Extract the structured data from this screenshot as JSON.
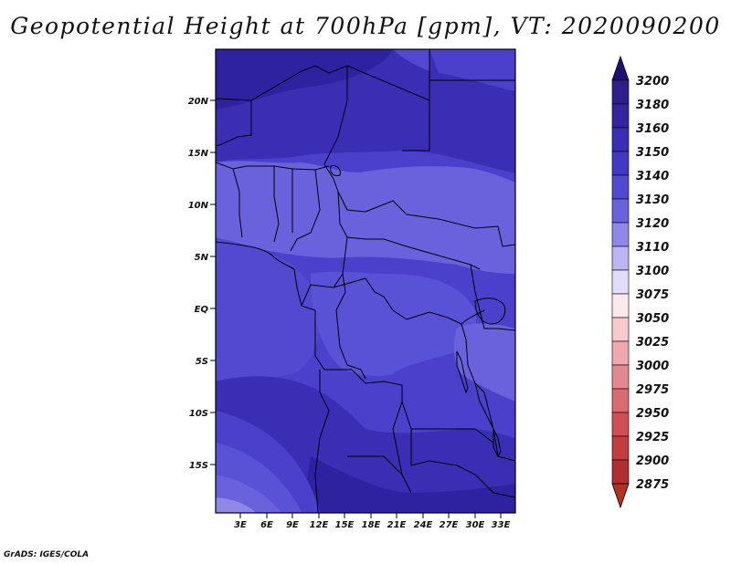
{
  "title": "Geopotential Height at 700hPa [gpm], VT: 2020090200",
  "credit": "GrADS: IGES/COLA",
  "map": {
    "lat_ticks": [
      "20N",
      "15N",
      "10N",
      "5N",
      "EQ",
      "5S",
      "10S",
      "15S"
    ],
    "lon_ticks": [
      "3E",
      "6E",
      "9E",
      "12E",
      "15E",
      "18E",
      "21E",
      "24E",
      "27E",
      "30E",
      "33E"
    ]
  },
  "colorbar": {
    "levels": [
      {
        "label": "3200",
        "color": "#2e1f8c"
      },
      {
        "label": "3180",
        "color": "#3424a0"
      },
      {
        "label": "3160",
        "color": "#3a2eb4"
      },
      {
        "label": "3150",
        "color": "#4338c4"
      },
      {
        "label": "3140",
        "color": "#5249d0"
      },
      {
        "label": "3130",
        "color": "#6a62dc"
      },
      {
        "label": "3120",
        "color": "#9088e8"
      },
      {
        "label": "3110",
        "color": "#bbb5f2"
      },
      {
        "label": "3100",
        "color": "#e0ddfa"
      },
      {
        "label": "3075",
        "color": "#fbe8ea"
      },
      {
        "label": "3050",
        "color": "#f6c9cd"
      },
      {
        "label": "3025",
        "color": "#eea8ae"
      },
      {
        "label": "3000",
        "color": "#e48890"
      },
      {
        "label": "2975",
        "color": "#d96a72"
      },
      {
        "label": "2950",
        "color": "#d04e54"
      },
      {
        "label": "2925",
        "color": "#c23c40"
      },
      {
        "label": "2900",
        "color": "#b02e30"
      },
      {
        "label": "2875",
        "color": "#9c2222"
      }
    ],
    "top_arrow_color": "#1e1270",
    "bottom_arrow_color": "#b23024"
  }
}
